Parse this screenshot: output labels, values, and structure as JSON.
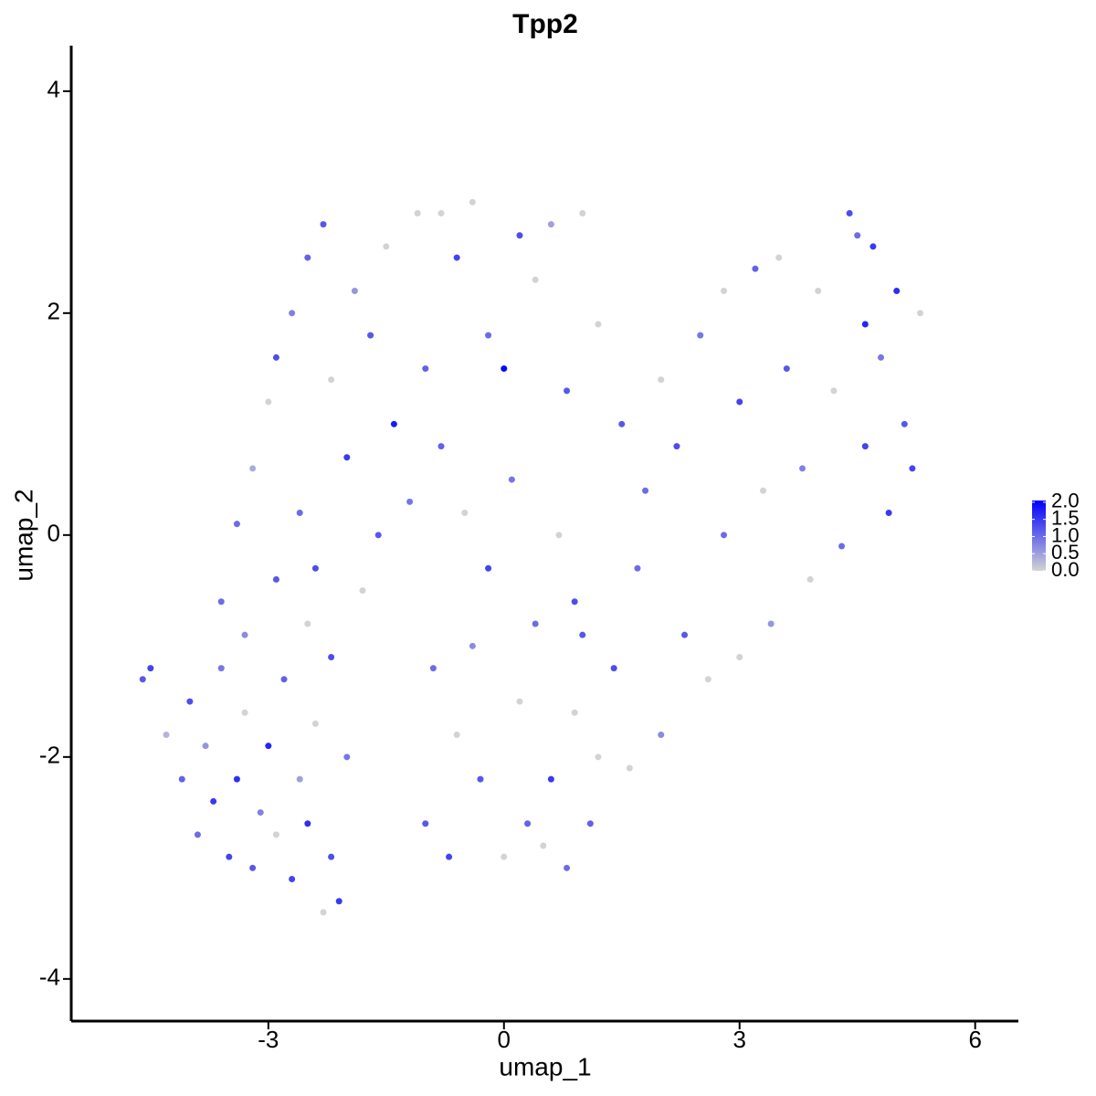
{
  "chart_data": {
    "type": "scatter",
    "title": "Tpp2",
    "x_label": "umap_1",
    "y_label": "umap_2",
    "xlim": [
      -5.51,
      6.55
    ],
    "ylim": [
      -4.38,
      4.41
    ],
    "xticks": [
      -3,
      0,
      3,
      6
    ],
    "yticks": [
      -4,
      -2,
      0,
      2,
      4
    ],
    "color_low": "#d3d3d3",
    "color_high": "#0000ff",
    "colorlim": [
      0,
      2.05
    ],
    "colorticks": [
      {
        "value": 2,
        "label": "2.0"
      },
      {
        "value": 1.5,
        "label": "1.5"
      },
      {
        "value": 1,
        "label": "1.0"
      },
      {
        "value": 0.5,
        "label": "0.5"
      },
      {
        "value": 0,
        "label": "0.0"
      }
    ],
    "x": [
      -4.6,
      -4.5,
      -4.3,
      -4.1,
      -4.0,
      -3.9,
      -3.8,
      -3.7,
      -3.6,
      -3.5,
      -3.4,
      -3.3,
      -3.2,
      -3.1,
      -3.0,
      -2.9,
      -2.8,
      -2.7,
      -2.6,
      -2.5,
      -2.4,
      -2.3,
      -2.2,
      -2.1,
      -2.0,
      -3.6,
      -3.3,
      -2.9,
      -2.5,
      -2.2,
      -3.4,
      -3.2,
      -3.0,
      -2.9,
      -2.7,
      -2.5,
      -2.3,
      -2.2,
      -2.0,
      -1.9,
      -1.7,
      -1.5,
      -1.4,
      -1.2,
      -1.1,
      -1.0,
      -2.6,
      -2.4,
      -1.8,
      -1.6,
      -0.8,
      -0.6,
      -0.4,
      -0.2,
      0.0,
      0.2,
      0.4,
      0.6,
      0.8,
      1.0,
      -0.8,
      -0.5,
      -0.2,
      0.1,
      0.4,
      0.7,
      0.9,
      -0.9,
      -0.6,
      -0.3,
      0.0,
      0.3,
      0.6,
      0.9,
      -1.0,
      -0.7,
      0.5,
      0.8,
      -0.4,
      0.2,
      1.2,
      1.5,
      1.8,
      2.0,
      2.2,
      2.5,
      2.8,
      3.0,
      3.2,
      3.5,
      3.6,
      3.8,
      4.0,
      4.2,
      4.4,
      4.5,
      4.6,
      4.7,
      4.8,
      5.0,
      5.1,
      5.2,
      5.3,
      4.9,
      4.3,
      3.9,
      3.4,
      3.0,
      2.6,
      2.3,
      2.0,
      1.7,
      1.4,
      1.2,
      1.0,
      2.8,
      3.3,
      4.6,
      1.1,
      1.6
    ],
    "y": [
      -1.3,
      -1.2,
      -1.8,
      -2.2,
      -1.5,
      -2.7,
      -1.9,
      -2.4,
      -1.2,
      -2.9,
      -2.2,
      -1.6,
      -3.0,
      -2.5,
      -1.9,
      -2.7,
      -1.3,
      -3.1,
      -2.2,
      -2.6,
      -1.7,
      -3.4,
      -2.9,
      -3.3,
      -2.0,
      -0.6,
      -0.9,
      -0.4,
      -0.8,
      -1.1,
      0.1,
      0.6,
      1.2,
      1.6,
      2.0,
      2.5,
      2.8,
      1.4,
      0.7,
      2.2,
      1.8,
      2.6,
      1.0,
      0.3,
      2.9,
      1.5,
      0.2,
      -0.3,
      -0.5,
      0.0,
      2.9,
      2.5,
      3.0,
      1.8,
      1.5,
      2.7,
      2.3,
      2.8,
      1.3,
      2.9,
      0.8,
      0.2,
      -0.3,
      0.5,
      -0.8,
      0.0,
      -0.6,
      -1.2,
      -1.8,
      -2.2,
      -2.9,
      -2.6,
      -2.2,
      -1.6,
      -2.6,
      -2.9,
      -2.8,
      -3.0,
      -1.0,
      -1.5,
      1.9,
      1.0,
      0.4,
      1.4,
      0.8,
      1.8,
      2.2,
      1.2,
      2.4,
      2.5,
      1.5,
      0.6,
      2.2,
      1.3,
      2.9,
      2.7,
      0.8,
      2.6,
      1.6,
      2.2,
      1.0,
      0.6,
      2.0,
      0.2,
      -0.1,
      -0.4,
      -0.8,
      -1.1,
      -1.3,
      -0.9,
      -1.8,
      -0.3,
      -1.2,
      -2.0,
      -0.9,
      0.0,
      0.4,
      1.9,
      -2.6,
      -2.1
    ],
    "values": [
      1.2,
      1.4,
      0.3,
      1.1,
      1.3,
      1.0,
      0.6,
      1.5,
      0.9,
      1.4,
      1.6,
      0.0,
      1.2,
      0.8,
      1.7,
      0.0,
      1.1,
      1.4,
      0.5,
      1.6,
      0.0,
      0.0,
      1.3,
      1.5,
      0.9,
      1.0,
      0.7,
      1.2,
      0.0,
      1.3,
      1.0,
      0.4,
      0.0,
      1.3,
      0.8,
      1.1,
      1.2,
      0.0,
      1.5,
      0.6,
      1.2,
      0.0,
      1.8,
      0.9,
      0.0,
      1.1,
      1.0,
      1.3,
      0.0,
      1.2,
      0.0,
      1.4,
      0.0,
      1.0,
      2.0,
      1.3,
      0.0,
      0.5,
      1.2,
      0.0,
      1.1,
      0.0,
      1.4,
      0.9,
      1.0,
      0.0,
      1.3,
      1.0,
      0.0,
      1.2,
      0.0,
      1.1,
      1.5,
      0.0,
      1.2,
      1.4,
      0.0,
      1.0,
      0.7,
      0.0,
      0.0,
      1.2,
      1.0,
      0.0,
      1.3,
      0.9,
      0.0,
      1.4,
      1.1,
      0.0,
      1.2,
      0.8,
      0.0,
      0.0,
      1.3,
      1.0,
      1.4,
      1.5,
      0.9,
      1.6,
      1.2,
      1.4,
      0.0,
      1.5,
      1.0,
      0.0,
      0.6,
      0.0,
      0.0,
      1.2,
      0.7,
      1.0,
      1.3,
      0.0,
      1.2,
      1.0,
      0.0,
      1.7,
      1.1,
      0.0
    ]
  }
}
